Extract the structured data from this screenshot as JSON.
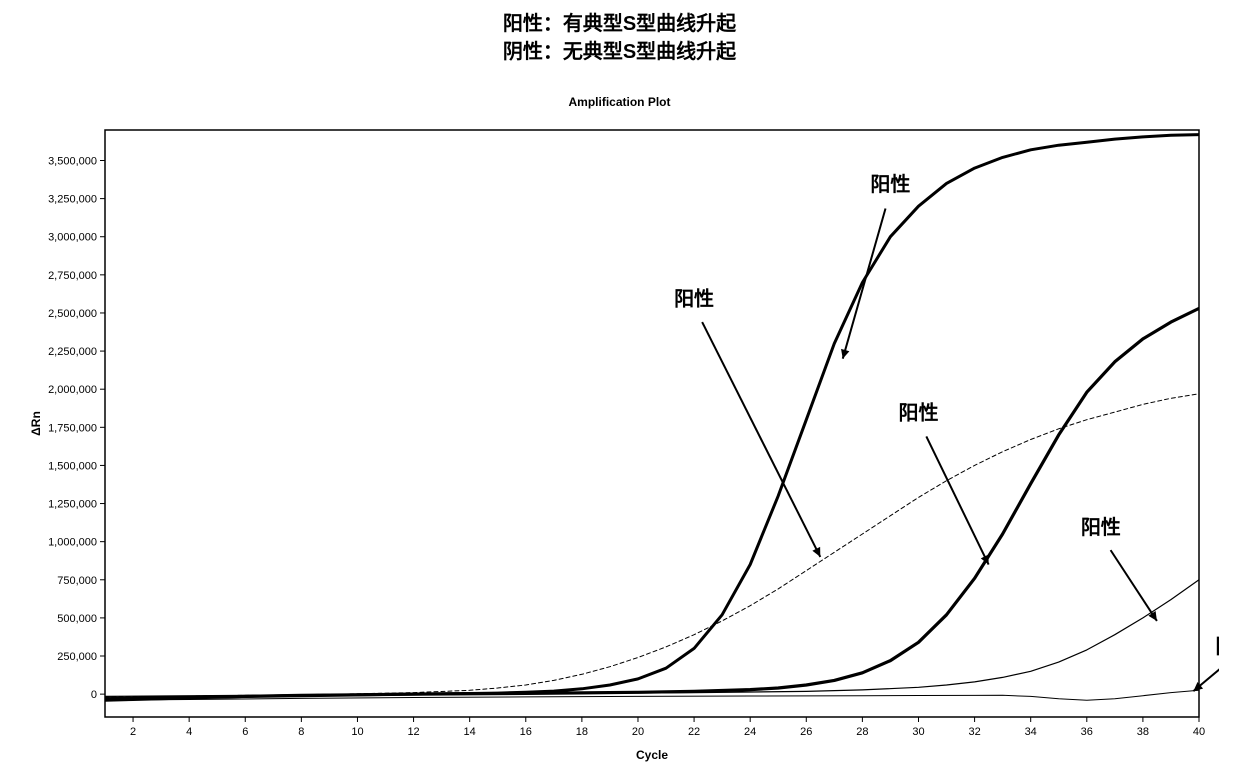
{
  "header": {
    "line1": "阳性：有典型S型曲线升起",
    "line2": "阴性：无典型S型曲线升起"
  },
  "chart": {
    "subtitle": "Amplification Plot",
    "type": "line",
    "background_color": "#ffffff",
    "axis_color": "#000000",
    "grid_color": "#d0d0d0",
    "x": {
      "label": "Cycle",
      "min": 1,
      "max": 40,
      "ticks": [
        2,
        4,
        6,
        8,
        10,
        12,
        14,
        16,
        18,
        20,
        22,
        24,
        26,
        28,
        30,
        32,
        34,
        36,
        38,
        40
      ],
      "label_fontsize": 12
    },
    "y": {
      "label": "ΔRn",
      "min": -150000,
      "max": 3700000,
      "ticks": [
        0,
        250000,
        500000,
        750000,
        1000000,
        1250000,
        1500000,
        1750000,
        2000000,
        2250000,
        2500000,
        2750000,
        3000000,
        3250000,
        3500000
      ],
      "tick_labels": [
        "0",
        "250,000",
        "500,000",
        "750,000",
        "1,000,000",
        "1,250,000",
        "1,500,000",
        "1,750,000",
        "2,000,000",
        "2,250,000",
        "2,500,000",
        "2,750,000",
        "3,000,000",
        "3,250,000",
        "3,500,000"
      ],
      "label_fontsize": 12
    },
    "series": [
      {
        "name": "positive-curve-1-bold-high",
        "color": "#000000",
        "line_width": 3.0,
        "data": [
          [
            1,
            -40000
          ],
          [
            2,
            -35000
          ],
          [
            3,
            -30000
          ],
          [
            4,
            -25000
          ],
          [
            5,
            -20000
          ],
          [
            6,
            -15000
          ],
          [
            7,
            -10000
          ],
          [
            8,
            -8000
          ],
          [
            9,
            -6000
          ],
          [
            10,
            -4000
          ],
          [
            11,
            -2000
          ],
          [
            12,
            0
          ],
          [
            13,
            2000
          ],
          [
            14,
            4000
          ],
          [
            15,
            7000
          ],
          [
            16,
            12000
          ],
          [
            17,
            20000
          ],
          [
            18,
            35000
          ],
          [
            19,
            60000
          ],
          [
            20,
            100000
          ],
          [
            21,
            170000
          ],
          [
            22,
            300000
          ],
          [
            23,
            520000
          ],
          [
            24,
            850000
          ],
          [
            25,
            1300000
          ],
          [
            26,
            1800000
          ],
          [
            27,
            2300000
          ],
          [
            28,
            2700000
          ],
          [
            29,
            3000000
          ],
          [
            30,
            3200000
          ],
          [
            31,
            3350000
          ],
          [
            32,
            3450000
          ],
          [
            33,
            3520000
          ],
          [
            34,
            3570000
          ],
          [
            35,
            3600000
          ],
          [
            36,
            3620000
          ],
          [
            37,
            3640000
          ],
          [
            38,
            3655000
          ],
          [
            39,
            3665000
          ],
          [
            40,
            3670000
          ]
        ]
      },
      {
        "name": "positive-curve-2-bold-late",
        "color": "#000000",
        "line_width": 3.2,
        "data": [
          [
            1,
            -30000
          ],
          [
            4,
            -20000
          ],
          [
            8,
            -10000
          ],
          [
            12,
            0
          ],
          [
            16,
            5000
          ],
          [
            18,
            8000
          ],
          [
            20,
            12000
          ],
          [
            22,
            18000
          ],
          [
            24,
            30000
          ],
          [
            25,
            40000
          ],
          [
            26,
            60000
          ],
          [
            27,
            90000
          ],
          [
            28,
            140000
          ],
          [
            29,
            220000
          ],
          [
            30,
            340000
          ],
          [
            31,
            520000
          ],
          [
            32,
            760000
          ],
          [
            33,
            1050000
          ],
          [
            34,
            1380000
          ],
          [
            35,
            1700000
          ],
          [
            36,
            1980000
          ],
          [
            37,
            2180000
          ],
          [
            38,
            2330000
          ],
          [
            39,
            2440000
          ],
          [
            40,
            2530000
          ]
        ]
      },
      {
        "name": "positive-curve-3-thin-dashed",
        "color": "#000000",
        "line_width": 1.0,
        "dash": "4 3",
        "data": [
          [
            1,
            -20000
          ],
          [
            4,
            -12000
          ],
          [
            8,
            -4000
          ],
          [
            10,
            2000
          ],
          [
            12,
            10000
          ],
          [
            14,
            25000
          ],
          [
            15,
            40000
          ],
          [
            16,
            60000
          ],
          [
            17,
            90000
          ],
          [
            18,
            130000
          ],
          [
            19,
            180000
          ],
          [
            20,
            240000
          ],
          [
            21,
            310000
          ],
          [
            22,
            390000
          ],
          [
            23,
            480000
          ],
          [
            24,
            580000
          ],
          [
            25,
            690000
          ],
          [
            26,
            810000
          ],
          [
            27,
            930000
          ],
          [
            28,
            1050000
          ],
          [
            29,
            1170000
          ],
          [
            30,
            1290000
          ],
          [
            31,
            1400000
          ],
          [
            32,
            1500000
          ],
          [
            33,
            1590000
          ],
          [
            34,
            1670000
          ],
          [
            35,
            1740000
          ],
          [
            36,
            1800000
          ],
          [
            37,
            1850000
          ],
          [
            38,
            1900000
          ],
          [
            39,
            1940000
          ],
          [
            40,
            1970000
          ]
        ]
      },
      {
        "name": "positive-curve-4-thin-late",
        "color": "#000000",
        "line_width": 1.2,
        "data": [
          [
            1,
            -15000
          ],
          [
            6,
            -8000
          ],
          [
            12,
            0
          ],
          [
            18,
            5000
          ],
          [
            22,
            10000
          ],
          [
            26,
            18000
          ],
          [
            28,
            28000
          ],
          [
            30,
            45000
          ],
          [
            31,
            60000
          ],
          [
            32,
            80000
          ],
          [
            33,
            110000
          ],
          [
            34,
            150000
          ],
          [
            35,
            210000
          ],
          [
            36,
            290000
          ],
          [
            37,
            390000
          ],
          [
            38,
            500000
          ],
          [
            39,
            620000
          ],
          [
            40,
            750000
          ]
        ]
      },
      {
        "name": "negative-curve-flat",
        "color": "#000000",
        "line_width": 1.0,
        "data": [
          [
            1,
            -40000
          ],
          [
            4,
            -35000
          ],
          [
            8,
            -28000
          ],
          [
            12,
            -22000
          ],
          [
            16,
            -18000
          ],
          [
            20,
            -15000
          ],
          [
            24,
            -12000
          ],
          [
            28,
            -10000
          ],
          [
            30,
            -9000
          ],
          [
            32,
            -8500
          ],
          [
            33,
            -8000
          ],
          [
            34,
            -15000
          ],
          [
            35,
            -30000
          ],
          [
            36,
            -40000
          ],
          [
            37,
            -30000
          ],
          [
            38,
            -10000
          ],
          [
            39,
            10000
          ],
          [
            40,
            25000
          ]
        ]
      }
    ],
    "annotations": [
      {
        "text": "阳性",
        "tx": 29,
        "ty": 3300000,
        "ax": 27.3,
        "ay": 2200000
      },
      {
        "text": "阳性",
        "tx": 22,
        "ty": 2550000,
        "ax": 26.5,
        "ay": 900000
      },
      {
        "text": "阳性",
        "tx": 30,
        "ty": 1800000,
        "ax": 32.5,
        "ay": 850000
      },
      {
        "text": "阳性",
        "tx": 36.5,
        "ty": 1050000,
        "ax": 38.5,
        "ay": 480000
      },
      {
        "text": "阴性",
        "tx": 41.3,
        "ty": 270000,
        "ax": 39.8,
        "ay": 20000
      }
    ]
  }
}
